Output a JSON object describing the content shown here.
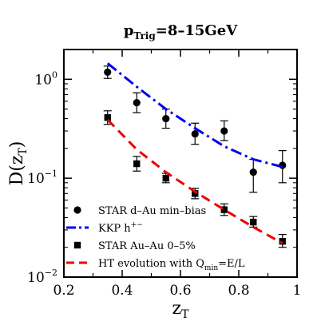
{
  "chart_data": {
    "type": "scatter",
    "title": {
      "base": "p",
      "sub": "Trig",
      "rest": "=8–15GeV"
    },
    "xlabel": {
      "base": "z",
      "sub": "T"
    },
    "ylabel": {
      "prefix": "D(z",
      "sub": "T",
      "suffix": ")"
    },
    "xlim": [
      0.2,
      1.0
    ],
    "ylim": [
      0.01,
      2.0
    ],
    "yscale": "log",
    "xticks": [
      0.2,
      0.4,
      0.6,
      0.8,
      1.0
    ],
    "xtick_labels": [
      "0.2",
      "0.4",
      "0.6",
      "0.8",
      "1"
    ],
    "yticks": [
      {
        "value": 0.01,
        "base": "10",
        "exp": "−2"
      },
      {
        "value": 0.1,
        "base": "10",
        "exp": "−1"
      },
      {
        "value": 1.0,
        "base": "10",
        "exp": "0"
      }
    ],
    "grid": false,
    "legend_position": "bottom-left",
    "series": [
      {
        "name": "STAR d–Au min–bias",
        "kind": "points",
        "marker": "circle",
        "color": "#000000",
        "points": [
          {
            "x": 0.35,
            "y": 1.18,
            "ylo": 1.02,
            "yhi": 1.36
          },
          {
            "x": 0.45,
            "y": 0.58,
            "ylo": 0.46,
            "yhi": 0.73
          },
          {
            "x": 0.55,
            "y": 0.4,
            "ylo": 0.32,
            "yhi": 0.5
          },
          {
            "x": 0.65,
            "y": 0.28,
            "ylo": 0.22,
            "yhi": 0.36
          },
          {
            "x": 0.75,
            "y": 0.3,
            "ylo": 0.24,
            "yhi": 0.38
          },
          {
            "x": 0.85,
            "y": 0.115,
            "ylo": 0.072,
            "yhi": 0.155
          },
          {
            "x": 0.95,
            "y": 0.135,
            "ylo": 0.09,
            "yhi": 0.19
          }
        ]
      },
      {
        "name": {
          "base": "KKP h",
          "sup": "+−"
        },
        "kind": "line",
        "style": "dashdot",
        "color": "#0000ee",
        "x": [
          0.35,
          0.45,
          0.55,
          0.65,
          0.75,
          0.85,
          0.95
        ],
        "y": [
          1.45,
          0.84,
          0.5,
          0.32,
          0.21,
          0.155,
          0.13
        ]
      },
      {
        "name": "STAR Au–Au 0–5%",
        "kind": "points",
        "marker": "square",
        "color": "#000000",
        "points": [
          {
            "x": 0.35,
            "y": 0.41,
            "ylo": 0.35,
            "yhi": 0.48
          },
          {
            "x": 0.45,
            "y": 0.14,
            "ylo": 0.118,
            "yhi": 0.166
          },
          {
            "x": 0.55,
            "y": 0.1,
            "ylo": 0.09,
            "yhi": 0.112
          },
          {
            "x": 0.65,
            "y": 0.07,
            "ylo": 0.062,
            "yhi": 0.079
          },
          {
            "x": 0.75,
            "y": 0.048,
            "ylo": 0.042,
            "yhi": 0.055
          },
          {
            "x": 0.85,
            "y": 0.036,
            "ylo": 0.032,
            "yhi": 0.041
          },
          {
            "x": 0.95,
            "y": 0.023,
            "ylo": 0.02,
            "yhi": 0.027
          }
        ]
      },
      {
        "name": {
          "base": "HT evolution with Q",
          "sub": "min",
          "rest": "=E/L"
        },
        "kind": "line",
        "style": "dashed",
        "color": "#ee0000",
        "x": [
          0.35,
          0.45,
          0.55,
          0.65,
          0.75,
          0.85,
          0.95
        ],
        "y": [
          0.39,
          0.195,
          0.115,
          0.073,
          0.048,
          0.032,
          0.022
        ]
      }
    ]
  }
}
